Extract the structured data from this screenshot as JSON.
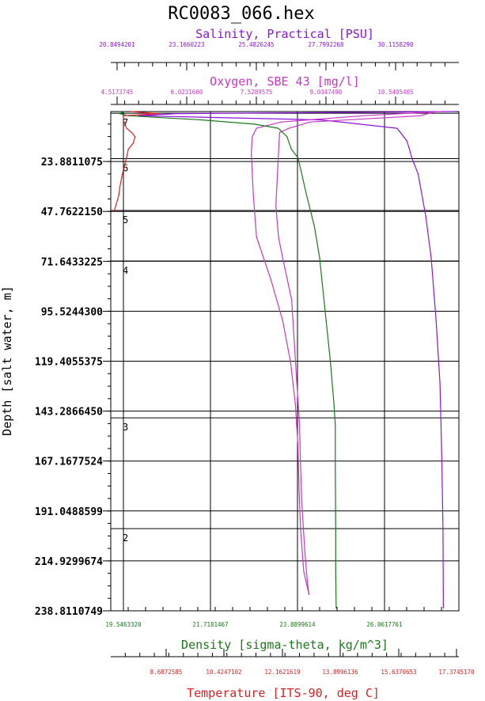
{
  "title": "RC0083_066.hex",
  "colors": {
    "salinity": "#8b14e0",
    "oxygen": "#c936c9",
    "density": "#1a7a1a",
    "temperature": "#e02020",
    "grid": "#000000"
  },
  "axes": {
    "salinity": {
      "label": "Salinity, Practical [PSU]",
      "ticks": [
        "20.8494201",
        "23.1660223",
        "25.4826245",
        "27.7992268",
        "30.1158290"
      ]
    },
    "oxygen": {
      "label": "Oxygen, SBE 43 [mg/l]",
      "ticks": [
        "4.5173745",
        "6.0231660",
        "7.5289575",
        "9.0347490",
        "10.5405405"
      ]
    },
    "density": {
      "label": "Density [sigma-theta, kg/m^3]",
      "ticks": [
        "19.5463320",
        "21.7181467",
        "23.8899614",
        "26.0617761"
      ]
    },
    "temperature": {
      "label": "Temperature [ITS-90, deg C]",
      "ticks": [
        "8.6872585",
        "10.4247102",
        "12.1621619",
        "13.8996136",
        "15.6370653",
        "17.3745170"
      ]
    },
    "depth": {
      "label": "Depth [salt water, m]",
      "ticks": [
        "23.8811075",
        "47.7622150",
        "71.6433225",
        "95.5244300",
        "119.4055375",
        "143.2866450",
        "167.1677524",
        "191.0488599",
        "214.9299674",
        "238.8110749"
      ]
    }
  },
  "bottles": [
    {
      "label": "7",
      "depth": 0.8
    },
    {
      "label": "6",
      "depth": 22.5
    },
    {
      "label": "5",
      "depth": 47.3
    },
    {
      "label": "4",
      "depth": 71.5
    },
    {
      "label": "3",
      "depth": 146.5
    },
    {
      "label": "2",
      "depth": 199.5
    }
  ],
  "chart_data": {
    "type": "line",
    "title": "RC0083_066.hex",
    "y_axis": {
      "label": "Depth [salt water, m]",
      "range": [
        0,
        238.8110749
      ],
      "inverted": true
    },
    "series": [
      {
        "name": "Salinity, Practical [PSU]",
        "x_range": [
          20.0,
          30.7
        ],
        "depth": [
          0,
          1,
          2,
          4,
          8,
          14,
          18,
          22,
          30,
          50,
          70,
          100,
          130,
          150,
          170,
          200,
          230,
          237.5
        ],
        "values": [
          30.56,
          22.0,
          20.85,
          26.5,
          28.8,
          29.1,
          29.18,
          29.25,
          29.45,
          29.68,
          29.85,
          30.0,
          30.12,
          30.15,
          30.18,
          30.21,
          30.22,
          30.22
        ]
      },
      {
        "name": "Oxygen, SBE 43 [mg/l]",
        "x_range": [
          4.2,
          10.84
        ],
        "depth": [
          0,
          2,
          5,
          8,
          10,
          20,
          30,
          45,
          60,
          70,
          90,
          110,
          130,
          150,
          170,
          190,
          210,
          225,
          231
        ],
        "values": [
          10.4,
          10.1,
          8.0,
          7.6,
          7.42,
          7.4,
          7.38,
          7.35,
          7.4,
          7.48,
          7.65,
          7.7,
          7.75,
          7.8,
          7.82,
          7.85,
          7.9,
          7.95,
          7.98
        ],
        "return_depth": [
          231,
          220,
          200,
          180,
          160,
          140,
          120,
          100,
          80,
          60,
          40,
          20,
          12,
          8,
          5,
          2,
          0
        ],
        "return_values": [
          7.98,
          7.88,
          7.82,
          7.79,
          7.77,
          7.72,
          7.63,
          7.48,
          7.25,
          6.98,
          6.92,
          6.88,
          6.9,
          6.98,
          7.45,
          9.0,
          10.5
        ]
      },
      {
        "name": "Density [sigma-theta, kg/m^3]",
        "x_range": [
          19.1,
          27.1
        ],
        "depth": [
          0,
          1,
          2,
          4,
          6,
          8,
          12,
          18,
          22,
          28,
          40,
          55,
          70,
          80,
          100,
          120,
          140,
          150,
          170,
          200,
          220,
          237.5
        ],
        "values": [
          19.4,
          19.3,
          19.5,
          21.2,
          22.4,
          22.95,
          23.15,
          23.25,
          23.4,
          23.47,
          23.6,
          23.78,
          23.9,
          23.95,
          24.05,
          24.15,
          24.23,
          24.26,
          24.26,
          24.27,
          24.27,
          24.28
        ]
      },
      {
        "name": "Temperature [ITS-90, deg C]",
        "x_range": [
          7.58,
          17.9
        ],
        "depth": [
          0,
          1,
          2,
          4,
          8,
          10,
          12,
          15,
          18,
          22,
          25,
          28,
          32,
          36,
          40,
          44,
          47.5
        ],
        "values": [
          8.2,
          9.0,
          7.95,
          7.95,
          8.05,
          8.2,
          8.3,
          8.25,
          8.1,
          8.05,
          8.0,
          7.95,
          7.9,
          7.85,
          7.82,
          7.75,
          7.68
        ]
      }
    ]
  }
}
